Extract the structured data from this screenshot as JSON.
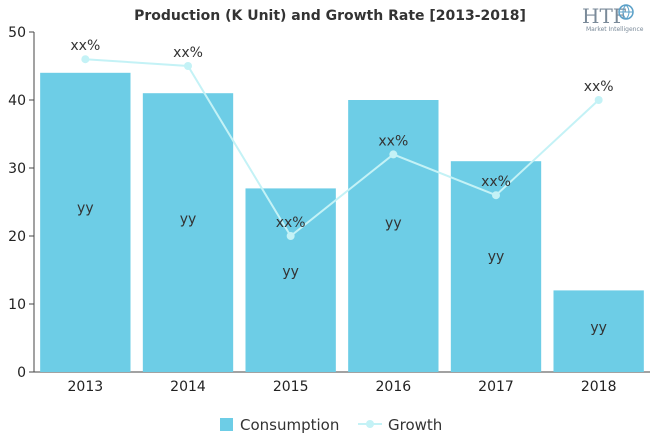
{
  "chart_data": {
    "type": "bar",
    "title": "Production (K Unit) and Growth Rate [2013-2018]",
    "categories": [
      "2013",
      "2014",
      "2015",
      "2016",
      "2017",
      "2018"
    ],
    "ylim": [
      0,
      50
    ],
    "yticks": [
      0,
      10,
      20,
      30,
      40,
      50
    ],
    "grid": false,
    "legend_position": "bottom",
    "series": [
      {
        "name": "Consumption",
        "type": "bar",
        "color": "#6dcde6",
        "values": [
          44,
          41,
          27,
          40,
          31,
          12
        ],
        "labels": [
          "yy",
          "yy",
          "yy",
          "yy",
          "yy",
          "yy"
        ]
      },
      {
        "name": "Growth",
        "type": "line",
        "color": "#c4f2f6",
        "values": [
          46,
          45,
          20,
          32,
          26,
          40
        ],
        "labels": [
          "xx%",
          "xx%",
          "xx%",
          "xx%",
          "xx%",
          "xx%"
        ]
      }
    ]
  },
  "logo": {
    "text": "HTF",
    "subtext": "Market Intelligence",
    "icon": "globe-icon"
  }
}
